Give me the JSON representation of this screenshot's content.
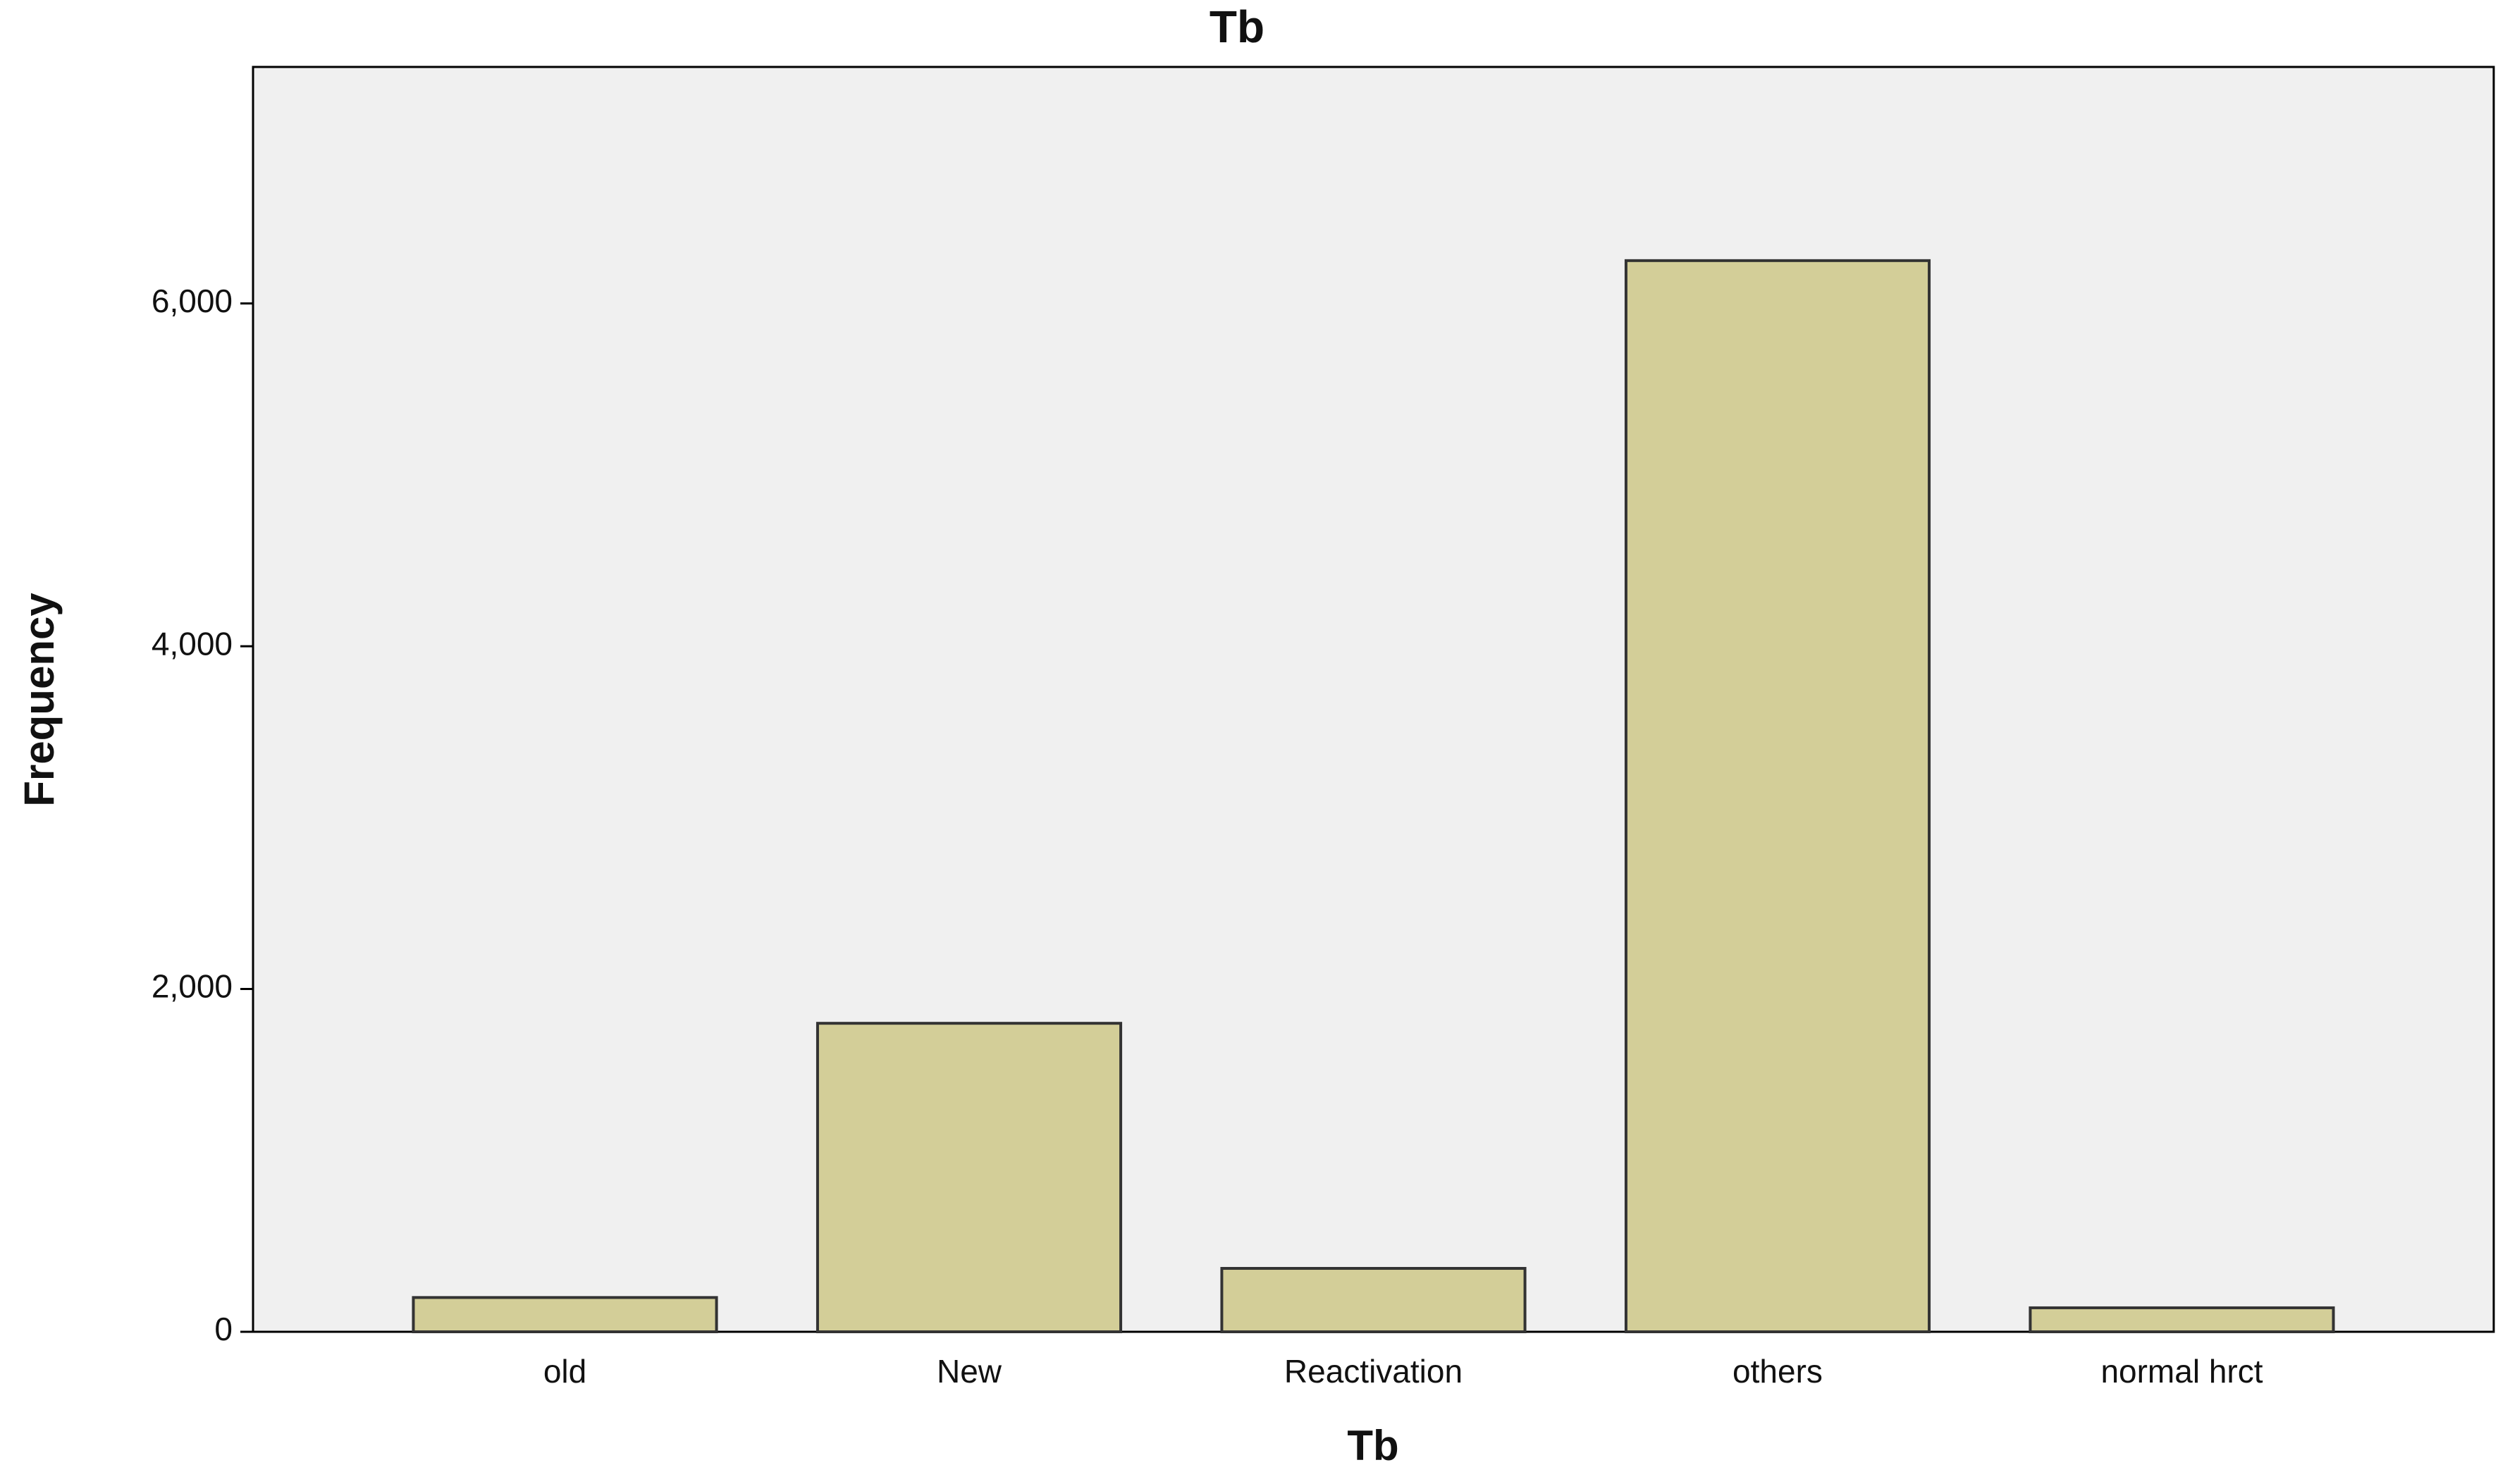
{
  "chart_data": {
    "type": "bar",
    "title": "Tb",
    "x_label": "Tb",
    "y_label": "Frequency",
    "categories": [
      "old",
      "New",
      "Reactivation",
      "others",
      "normal hrct"
    ],
    "values": [
      200,
      1800,
      370,
      6250,
      140
    ],
    "color": "#d3ce98",
    "ylim": [
      0,
      7380
    ],
    "yticks": [
      0,
      {
        "value": 2000,
        "label": "2,000"
      },
      {
        "value": 4000,
        "label": "4,000"
      },
      {
        "value": 6000,
        "label": "6,000"
      }
    ],
    "grid": false
  }
}
